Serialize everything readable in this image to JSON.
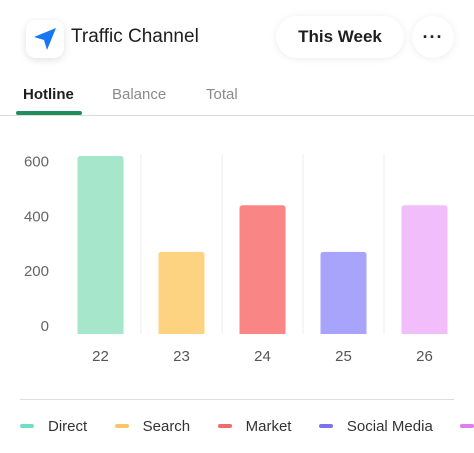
{
  "header": {
    "title": "Traffic Channel",
    "period_label": "This Week",
    "more_label": "···",
    "icon": "send-arrow-icon",
    "icon_color": "#1877f2"
  },
  "tabs": [
    {
      "label": "Hotline",
      "active": true
    },
    {
      "label": "Balance",
      "active": false
    },
    {
      "label": "Total",
      "active": false
    }
  ],
  "accent_color": "#1e8e5a",
  "chart_data": {
    "type": "bar",
    "categories": [
      "22",
      "23",
      "24",
      "25",
      "26"
    ],
    "values": [
      650,
      300,
      470,
      300,
      470
    ],
    "colors": [
      "#a6e6cb",
      "#fdd280",
      "#f98685",
      "#a8a3fb",
      "#f1bdfb"
    ],
    "yticks": [
      0,
      200,
      400,
      600
    ],
    "ylim": [
      0,
      650
    ],
    "grid": "vertical separators",
    "legend_position": "bottom"
  },
  "legend": [
    {
      "label": "Direct",
      "color": "#72dec7"
    },
    {
      "label": "Search",
      "color": "#fbc46a"
    },
    {
      "label": "Market",
      "color": "#f06b6b"
    },
    {
      "label": "Social Media",
      "color": "#7b73ee"
    },
    {
      "label": "",
      "color": "#e37bf0"
    }
  ]
}
